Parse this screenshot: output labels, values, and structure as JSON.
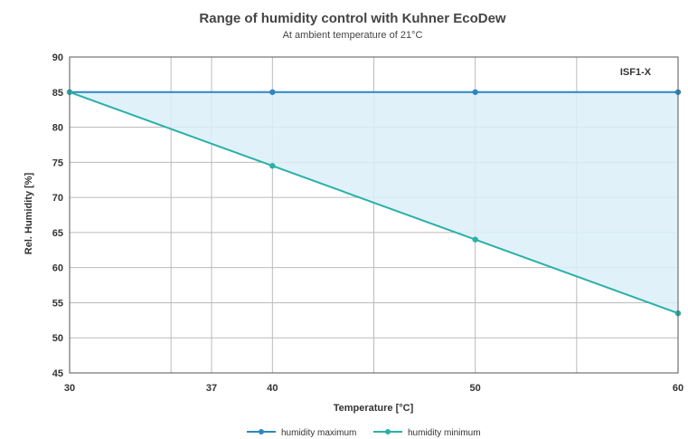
{
  "chart_data": {
    "type": "area",
    "title": "Range of humidity control with Kuhner EcoDew",
    "subtitle": "At ambient temperature of 21°C",
    "xlabel": "Temperature [°C]",
    "ylabel": "Rel. Humidity [%]",
    "xlim": [
      30,
      60
    ],
    "ylim": [
      45,
      90
    ],
    "x_ticks": [
      30,
      37,
      40,
      50,
      60
    ],
    "x_gridlines": [
      30,
      35,
      37,
      40,
      45,
      50,
      55,
      60
    ],
    "y_ticks": [
      45,
      50,
      55,
      60,
      65,
      70,
      75,
      80,
      85,
      90
    ],
    "grid": true,
    "annotation": "ISF1-X",
    "fill_color": "#dbeef8",
    "series": [
      {
        "name": "humidity maximum",
        "color": "#2e86c1",
        "x": [
          30,
          40,
          50,
          60
        ],
        "y": [
          85,
          85,
          85,
          85
        ]
      },
      {
        "name": "humidity minimum",
        "color": "#2ab0a8",
        "x": [
          30,
          40,
          50,
          60
        ],
        "y": [
          85,
          74.5,
          64,
          53.5
        ]
      }
    ],
    "legend_position": "bottom"
  }
}
